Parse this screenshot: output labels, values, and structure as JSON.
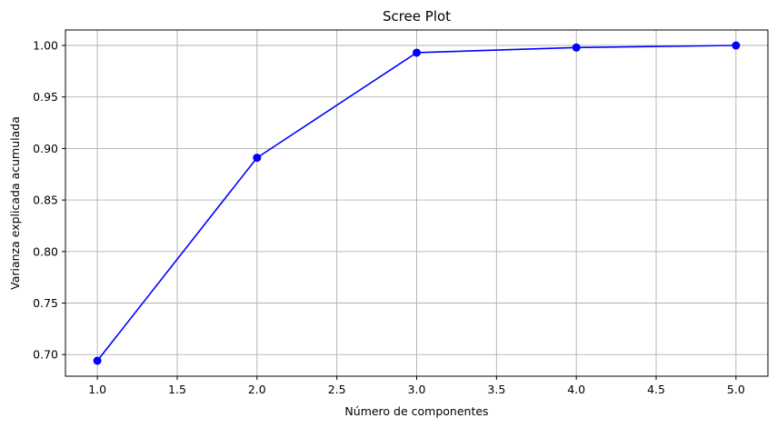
{
  "chart_data": {
    "type": "line",
    "title": "Scree Plot",
    "xlabel": "Número de componentes",
    "ylabel": "Varianza explicada acumulada",
    "x": [
      1,
      2,
      3,
      4,
      5
    ],
    "series": [
      {
        "values": [
          0.694,
          0.891,
          0.993,
          0.998,
          1.0
        ],
        "color": "#0000ff",
        "marker": "circle"
      }
    ],
    "xlim": [
      0.8,
      5.2
    ],
    "ylim": [
      0.679,
      1.015
    ],
    "xticks": [
      "1.0",
      "1.5",
      "2.0",
      "2.5",
      "3.0",
      "3.5",
      "4.0",
      "4.5",
      "5.0"
    ],
    "yticks": [
      "0.70",
      "0.75",
      "0.80",
      "0.85",
      "0.90",
      "0.95",
      "1.00"
    ],
    "grid": true,
    "grid_color": "#b0b0b0"
  }
}
